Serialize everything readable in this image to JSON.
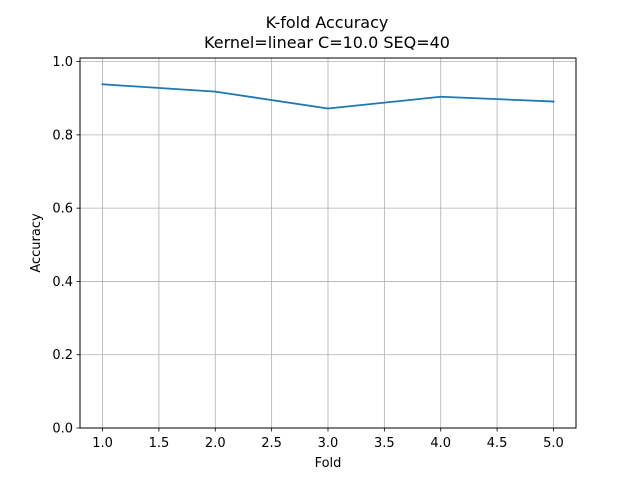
{
  "chart_data": {
    "type": "line",
    "title": "K-fold Accuracy",
    "subtitle": "Kernel=linear C=10.0 SEQ=40",
    "xlabel": "Fold",
    "ylabel": "Accuracy",
    "xlim": [
      0.8,
      5.2
    ],
    "ylim": [
      0.0,
      1.0
    ],
    "xticks": [
      1.0,
      1.5,
      2.0,
      2.5,
      3.0,
      3.5,
      4.0,
      4.5,
      5.0
    ],
    "xtick_labels": [
      "1.0",
      "1.5",
      "2.0",
      "2.5",
      "3.0",
      "3.5",
      "4.0",
      "4.5",
      "5.0"
    ],
    "yticks": [
      0.0,
      0.2,
      0.4,
      0.6,
      0.8,
      1.0
    ],
    "ytick_labels": [
      "0.0",
      "0.2",
      "0.4",
      "0.6",
      "0.8",
      "1.0"
    ],
    "grid": true,
    "series": [
      {
        "x": [
          1,
          2,
          3,
          4,
          5
        ],
        "values": [
          0.938,
          0.918,
          0.872,
          0.904,
          0.891
        ],
        "color": "#1f77b4"
      }
    ]
  }
}
